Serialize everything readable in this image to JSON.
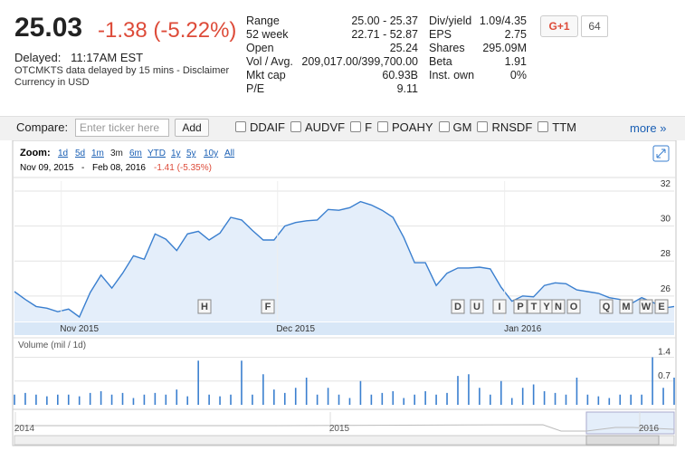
{
  "quote": {
    "price": "25.03",
    "change": "-1.38 (-5.22%)",
    "delayed_label": "Delayed:",
    "delayed_time": "11:17AM EST",
    "disclaimer": "OTCMKTS data delayed by 15 mins - Disclaimer",
    "currency": "Currency in USD"
  },
  "stats": [
    [
      {
        "label": "Range",
        "value": "25.00 - 25.37"
      },
      {
        "label": "52 week",
        "value": "22.71 - 52.87"
      },
      {
        "label": "Open",
        "value": "25.24"
      },
      {
        "label": "Vol / Avg.",
        "value": "209,017.00/399,700.00"
      },
      {
        "label": "Mkt cap",
        "value": "60.93B"
      },
      {
        "label": "P/E",
        "value": "9.11"
      }
    ],
    [
      {
        "label": "Div/yield",
        "value": "1.09/4.35"
      },
      {
        "label": "EPS",
        "value": "2.75"
      },
      {
        "label": "Shares",
        "value": "295.09M"
      },
      {
        "label": "Beta",
        "value": "1.91"
      },
      {
        "label": "Inst. own",
        "value": "0%"
      }
    ]
  ],
  "social": {
    "button": "G+1",
    "count": "64"
  },
  "compare": {
    "label": "Compare:",
    "placeholder": "Enter ticker here",
    "button": "Add",
    "tickers": [
      "DDAIF",
      "AUDVF",
      "F",
      "POAHY",
      "GM",
      "RNSDF",
      "TTM"
    ],
    "more": "more »"
  },
  "zoom": {
    "label": "Zoom:",
    "options": [
      "1d",
      "5d",
      "1m",
      "3m",
      "6m",
      "YTD",
      "1y",
      "5y",
      "10y",
      "All"
    ]
  },
  "range": {
    "start": "Nov 09, 2015",
    "separator": "-",
    "end": "Feb 08, 2016",
    "change": "-1.41 (-5.35%)"
  },
  "flags": [
    "H",
    "F",
    "D",
    "U",
    "I",
    "P",
    "T",
    "Y",
    "N",
    "O",
    "Q",
    "M",
    "W",
    "E"
  ],
  "overview": {
    "labels": [
      "2014",
      "2015",
      "2016"
    ]
  },
  "chart_data": [
    {
      "type": "line",
      "color": "#3a7fcf",
      "fill": "#e4eefa",
      "categories": [
        null,
        null,
        null,
        null,
        null,
        null,
        "Nov 2015",
        null,
        null,
        null,
        null,
        null,
        null,
        null,
        null,
        null,
        null,
        null,
        null,
        null,
        null,
        null,
        null,
        null,
        null,
        null,
        "Dec 2015",
        null,
        null,
        null,
        null,
        null,
        null,
        null,
        null,
        null,
        null,
        null,
        null,
        null,
        null,
        null,
        null,
        null,
        null,
        null,
        null,
        "Jan 2016",
        null,
        null,
        null,
        null,
        null,
        null,
        null,
        null,
        null,
        null,
        null,
        null,
        null,
        null
      ],
      "values": [
        26.25,
        25.8,
        25.4,
        25.3,
        25.1,
        25.25,
        24.8,
        26.2,
        27.2,
        26.45,
        27.3,
        28.3,
        28.1,
        29.55,
        29.25,
        28.6,
        29.55,
        29.7,
        29.2,
        29.6,
        30.5,
        30.35,
        29.75,
        29.2,
        29.2,
        30.0,
        30.2,
        30.3,
        30.35,
        30.95,
        30.9,
        31.05,
        31.4,
        31.2,
        30.9,
        30.5,
        29.35,
        27.9,
        27.9,
        26.6,
        27.3,
        27.6,
        27.6,
        27.65,
        27.55,
        26.5,
        25.7,
        26.0,
        25.95,
        26.6,
        26.75,
        26.7,
        26.35,
        26.25,
        26.15,
        25.9,
        25.8,
        25.55,
        25.9,
        25.65,
        25.3,
        25.4
      ],
      "ylim": [
        24.54,
        32.57
      ],
      "yticks": [
        26,
        28,
        30,
        32
      ],
      "grid": true
    },
    {
      "type": "bar",
      "title": "Volume (mil / 1d)",
      "color": "#3a7fcf",
      "values": [
        0.3,
        0.35,
        0.3,
        0.25,
        0.3,
        0.3,
        0.25,
        0.35,
        0.4,
        0.3,
        0.35,
        0.2,
        0.3,
        0.35,
        0.3,
        0.45,
        0.25,
        1.3,
        0.3,
        0.25,
        0.3,
        1.3,
        0.3,
        0.9,
        0.45,
        0.35,
        0.5,
        0.8,
        0.3,
        0.5,
        0.3,
        0.2,
        0.7,
        0.3,
        0.35,
        0.4,
        0.2,
        0.3,
        0.4,
        0.3,
        0.35,
        0.85,
        0.9,
        0.5,
        0.3,
        0.7,
        0.2,
        0.5,
        0.6,
        0.4,
        0.35,
        0.3,
        0.8,
        0.3,
        0.25,
        0.2,
        0.3,
        0.3,
        0.3,
        1.4,
        0.5,
        0.8
      ],
      "ylim": [
        0,
        1.6
      ],
      "yticks": [
        0.7,
        1.4
      ],
      "grid": true
    }
  ]
}
